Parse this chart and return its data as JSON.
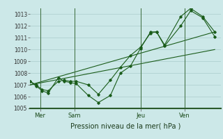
{
  "title": "Pression niveau de la mer( hPa )",
  "bg_color": "#cce8e8",
  "grid_color": "#aacccc",
  "line_color": "#1a5c1a",
  "ylim": [
    1005,
    1013.5
  ],
  "yticks": [
    1005,
    1006,
    1007,
    1008,
    1009,
    1010,
    1011,
    1012,
    1013
  ],
  "day_labels": [
    "Mer",
    "Sam",
    "Jeu",
    "Ven"
  ],
  "day_positions": [
    0.05,
    0.22,
    0.55,
    0.77
  ],
  "line1_x": [
    0.0,
    0.03,
    0.06,
    0.09,
    0.14,
    0.17,
    0.2,
    0.23,
    0.29,
    0.34,
    0.4,
    0.45,
    0.5,
    0.55,
    0.6,
    0.63,
    0.67,
    0.75,
    0.8,
    0.86,
    0.92
  ],
  "line1_y": [
    1007.3,
    1006.9,
    1006.5,
    1006.3,
    1007.6,
    1007.3,
    1007.2,
    1007.1,
    1006.1,
    1005.5,
    1006.1,
    1008.0,
    1008.6,
    1010.1,
    1011.5,
    1011.5,
    1010.3,
    1012.0,
    1013.3,
    1012.7,
    1011.1
  ],
  "line2_x": [
    0.0,
    0.03,
    0.06,
    0.09,
    0.14,
    0.17,
    0.2,
    0.23,
    0.29,
    0.34,
    0.4,
    0.45,
    0.5,
    0.55,
    0.6,
    0.63,
    0.67,
    0.75,
    0.8,
    0.86,
    0.92
  ],
  "line2_y": [
    1007.3,
    1007.0,
    1006.6,
    1006.5,
    1007.3,
    1007.4,
    1007.3,
    1007.3,
    1007.0,
    1006.2,
    1007.4,
    1008.5,
    1009.5,
    1010.2,
    1011.4,
    1011.5,
    1010.4,
    1012.8,
    1013.5,
    1012.8,
    1011.5
  ],
  "line3_x": [
    0.0,
    0.92
  ],
  "line3_y": [
    1007.0,
    1011.5
  ],
  "line4_x": [
    0.0,
    0.92
  ],
  "line4_y": [
    1007.0,
    1010.0
  ],
  "xlim": [
    0.0,
    0.95
  ],
  "vline_positions": [
    0.05,
    0.22,
    0.55,
    0.77
  ]
}
